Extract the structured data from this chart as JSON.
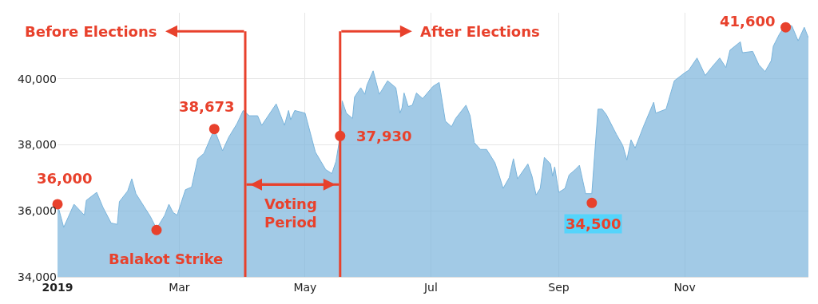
{
  "chart_data": {
    "type": "area",
    "x": [
      "2019-01-01",
      "2019-01-04",
      "2019-01-09",
      "2019-01-14",
      "2019-01-15",
      "2019-01-20",
      "2019-01-23",
      "2019-01-27",
      "2019-01-30",
      "2019-01-31",
      "2019-02-04",
      "2019-02-06",
      "2019-02-08",
      "2019-02-15",
      "2019-02-18",
      "2019-02-22",
      "2019-02-24",
      "2019-02-26",
      "2019-02-28",
      "2019-03-04",
      "2019-03-07",
      "2019-03-10",
      "2019-03-13",
      "2019-03-18",
      "2019-03-22",
      "2019-03-25",
      "2019-03-29",
      "2019-04-01",
      "2019-04-04",
      "2019-04-08",
      "2019-04-10",
      "2019-04-17",
      "2019-04-21",
      "2019-04-23",
      "2019-04-24",
      "2019-04-26",
      "2019-05-01",
      "2019-05-06",
      "2019-05-11",
      "2019-05-14",
      "2019-05-16",
      "2019-05-18",
      "2019-05-19",
      "2019-05-21",
      "2019-05-24",
      "2019-05-25",
      "2019-05-28",
      "2019-05-30",
      "2019-05-31",
      "2019-06-03",
      "2019-06-06",
      "2019-06-10",
      "2019-06-14",
      "2019-06-16",
      "2019-06-17",
      "2019-06-18",
      "2019-06-20",
      "2019-06-22",
      "2019-06-24",
      "2019-06-27",
      "2019-07-02",
      "2019-07-05",
      "2019-07-08",
      "2019-07-11",
      "2019-07-13",
      "2019-07-18",
      "2019-07-20",
      "2019-07-22",
      "2019-07-25",
      "2019-07-28",
      "2019-08-01",
      "2019-08-03",
      "2019-08-05",
      "2019-08-08",
      "2019-08-10",
      "2019-08-12",
      "2019-08-17",
      "2019-08-19",
      "2019-08-21",
      "2019-08-23",
      "2019-08-25",
      "2019-08-28",
      "2019-08-29",
      "2019-08-30",
      "2019-09-01",
      "2019-09-04",
      "2019-09-06",
      "2019-09-09",
      "2019-09-11",
      "2019-09-14",
      "2019-09-17",
      "2019-09-20",
      "2019-09-22",
      "2019-09-24",
      "2019-09-29",
      "2019-10-02",
      "2019-10-04",
      "2019-10-06",
      "2019-10-08",
      "2019-10-12",
      "2019-10-17",
      "2019-10-18",
      "2019-10-23",
      "2019-10-27",
      "2019-11-01",
      "2019-11-03",
      "2019-11-07",
      "2019-11-11",
      "2019-11-14",
      "2019-11-18",
      "2019-11-21",
      "2019-11-23",
      "2019-11-28",
      "2019-11-29",
      "2019-12-04",
      "2019-12-07",
      "2019-12-10",
      "2019-12-13",
      "2019-12-14",
      "2019-12-17",
      "2019-12-20",
      "2019-12-23",
      "2019-12-26",
      "2019-12-29",
      "2019-12-31"
    ],
    "series": [
      {
        "color": "#7ab4db",
        "values": [
          36200,
          35500,
          36200,
          35870,
          36320,
          36560,
          36110,
          35630,
          35590,
          36280,
          36600,
          36970,
          36520,
          35830,
          35460,
          35870,
          36200,
          35950,
          35870,
          36640,
          36720,
          37580,
          37740,
          38470,
          37820,
          38230,
          38640,
          39040,
          38880,
          38880,
          38590,
          39240,
          38590,
          39040,
          38760,
          39040,
          38960,
          37780,
          37250,
          37130,
          37500,
          38270,
          39330,
          38960,
          38800,
          39450,
          39730,
          39530,
          39810,
          40240,
          39530,
          39940,
          39730,
          38960,
          39120,
          39570,
          39160,
          39200,
          39570,
          39400,
          39770,
          39890,
          38720,
          38550,
          38800,
          39200,
          38880,
          38070,
          37860,
          37860,
          37460,
          37090,
          36680,
          37010,
          37580,
          36970,
          37420,
          37050,
          36480,
          36680,
          37620,
          37420,
          37050,
          37330,
          36560,
          36680,
          37090,
          37250,
          37380,
          36520,
          36520,
          39080,
          39080,
          38920,
          38310,
          37980,
          37540,
          38150,
          37900,
          38550,
          39290,
          38960,
          39080,
          39940,
          40180,
          40260,
          40630,
          40100,
          40340,
          40630,
          40340,
          40870,
          41120,
          40790,
          40830,
          40420,
          40220,
          40550,
          40990,
          41360,
          41640,
          41600,
          41150,
          41560,
          41240
        ]
      },
      {
        "type": "scatter",
        "color": "#e8412c",
        "marker": "circle",
        "x": [
          "2019-01-01",
          "2019-02-18",
          "2019-03-18",
          "2019-05-18",
          "2019-09-17",
          "2019-12-20"
        ],
        "values": [
          36200,
          35420,
          38480,
          38270,
          36240,
          41560
        ]
      }
    ],
    "xlim": [
      "2019-01-01",
      "2019-12-31"
    ],
    "xticks": [
      {
        "value": "2019-01-01",
        "label": "2019"
      },
      {
        "value": "2019-03-01",
        "label": "Mar"
      },
      {
        "value": "2019-05-01",
        "label": "May"
      },
      {
        "value": "2019-07-01",
        "label": "Jul"
      },
      {
        "value": "2019-09-01",
        "label": "Sep"
      },
      {
        "value": "2019-11-01",
        "label": "Nov"
      }
    ],
    "ylim": [
      34000,
      42000
    ],
    "yticks": [
      {
        "value": 34000,
        "label": "34,000"
      },
      {
        "value": 36000,
        "label": "36,000"
      },
      {
        "value": 38000,
        "label": "38,000"
      },
      {
        "value": 40000,
        "label": "40,000"
      }
    ],
    "grid": true,
    "ref_lines": [
      {
        "axis": "x",
        "value": "2019-04-02",
        "label": "Before Elections",
        "color": "#e8412c"
      },
      {
        "axis": "x",
        "value": "2019-05-18",
        "label": "After Elections",
        "color": "#e8412c"
      }
    ],
    "annotations": [
      {
        "text": "36,000",
        "x": "2019-01-01",
        "y": 36200
      },
      {
        "text": "Balakot Strike",
        "x": "2019-02-18",
        "y": 35420
      },
      {
        "text": "38,673",
        "x": "2019-03-18",
        "y": 38480
      },
      {
        "text": "37,930",
        "x": "2019-05-18",
        "y": 38270
      },
      {
        "text": "34,500",
        "x": "2019-09-17",
        "y": 36240
      },
      {
        "text": "41,600",
        "x": "2019-12-20",
        "y": 41560
      },
      "Voting\nPeriod"
    ]
  }
}
